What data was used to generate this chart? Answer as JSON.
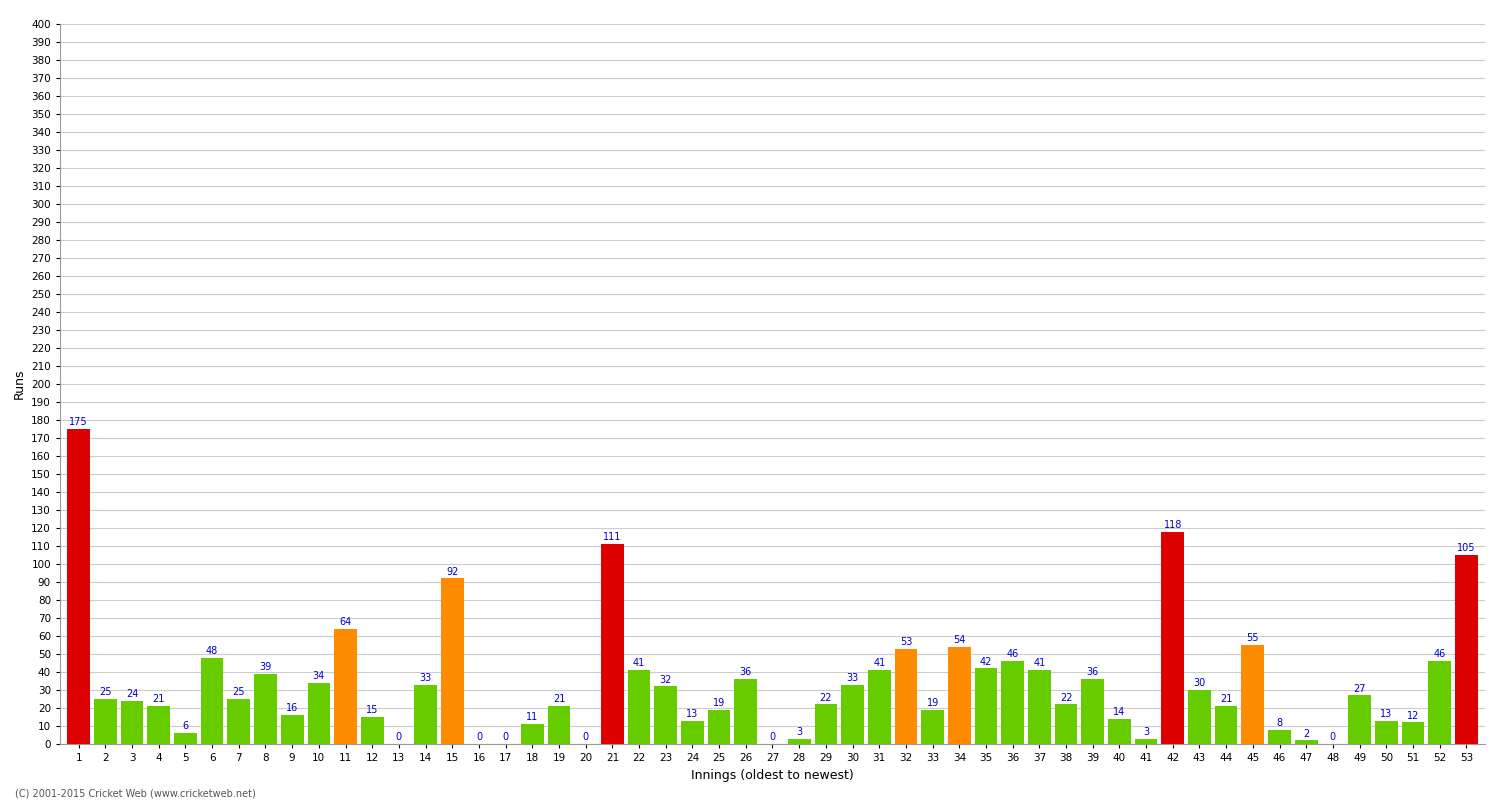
{
  "title": "",
  "xlabel": "Innings (oldest to newest)",
  "ylabel": "Runs",
  "innings": [
    1,
    2,
    3,
    4,
    5,
    6,
    7,
    8,
    9,
    10,
    11,
    12,
    13,
    14,
    15,
    16,
    17,
    18,
    19,
    20,
    21,
    22,
    23,
    24,
    25,
    26,
    27,
    28,
    29,
    30,
    31,
    32,
    33,
    34,
    35,
    36,
    37,
    38,
    39,
    40,
    41,
    42,
    43,
    44,
    45,
    46,
    47,
    48,
    49,
    50,
    51,
    52,
    53
  ],
  "values": [
    175,
    25,
    24,
    21,
    6,
    48,
    25,
    39,
    16,
    34,
    64,
    15,
    0,
    33,
    92,
    0,
    0,
    11,
    21,
    0,
    111,
    41,
    32,
    13,
    19,
    36,
    0,
    3,
    22,
    33,
    41,
    53,
    19,
    54,
    42,
    46,
    41,
    22,
    36,
    14,
    3,
    118,
    30,
    21,
    55,
    8,
    2,
    0,
    27,
    13,
    12,
    46,
    105
  ],
  "colors": [
    "red",
    "green",
    "green",
    "green",
    "green",
    "green",
    "green",
    "green",
    "green",
    "green",
    "orange",
    "green",
    "green",
    "green",
    "orange",
    "green",
    "green",
    "green",
    "green",
    "green",
    "red",
    "green",
    "green",
    "green",
    "green",
    "green",
    "green",
    "green",
    "green",
    "green",
    "green",
    "orange",
    "green",
    "orange",
    "green",
    "green",
    "green",
    "green",
    "green",
    "green",
    "green",
    "red",
    "green",
    "green",
    "orange",
    "green",
    "green",
    "green",
    "green",
    "green",
    "green",
    "green",
    "red"
  ],
  "color_map": {
    "red": "#dd0000",
    "green": "#66cc00",
    "orange": "#ff8c00"
  },
  "ylim": [
    0,
    400
  ],
  "yticks": [
    0,
    10,
    20,
    30,
    40,
    50,
    60,
    70,
    80,
    90,
    100,
    110,
    120,
    130,
    140,
    150,
    160,
    170,
    180,
    190,
    200,
    210,
    220,
    230,
    240,
    250,
    260,
    270,
    280,
    290,
    300,
    310,
    320,
    330,
    340,
    350,
    360,
    370,
    380,
    390,
    400
  ],
  "grid_color": "#cccccc",
  "bg_color": "#ffffff",
  "label_color": "#0000cc",
  "footer": "(C) 2001-2015 Cricket Web (www.cricketweb.net)",
  "bar_label_fontsize": 7,
  "axis_label_fontsize": 9,
  "tick_fontsize": 7.5
}
